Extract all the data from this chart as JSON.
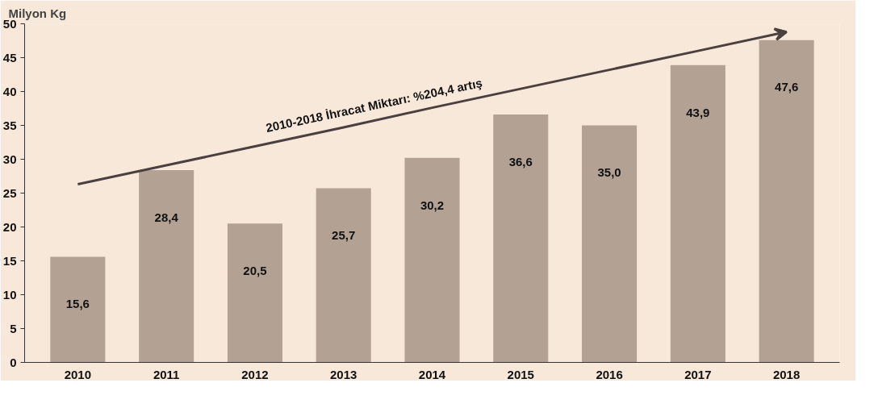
{
  "chart_data": {
    "type": "bar",
    "ylabel": "Milyon Kg",
    "categories": [
      "2010",
      "2011",
      "2012",
      "2013",
      "2014",
      "2015",
      "2016",
      "2017",
      "2018"
    ],
    "series": [
      {
        "color": "#b3a294",
        "values": [
          15.6,
          28.4,
          20.5,
          25.7,
          30.2,
          36.6,
          35.0,
          43.9,
          47.6
        ],
        "value_labels": [
          "15,6",
          "28,4",
          "20,5",
          "25,7",
          "30,2",
          "36,6",
          "35,0",
          "43,9",
          "47,6"
        ]
      },
      {
        "type": "line",
        "color": "#4a4040",
        "values": [
          26.3,
          29.1,
          31.9,
          34.7,
          37.6,
          40.4,
          43.2,
          46.0,
          48.8
        ]
      }
    ],
    "ylim": [
      0,
      50
    ],
    "yticks": [
      0,
      5,
      10,
      15,
      20,
      25,
      30,
      35,
      40,
      45,
      50
    ],
    "grid": false,
    "annotations": [
      "2010-2018 İhracat Miktarı: %204,4 artış"
    ]
  }
}
